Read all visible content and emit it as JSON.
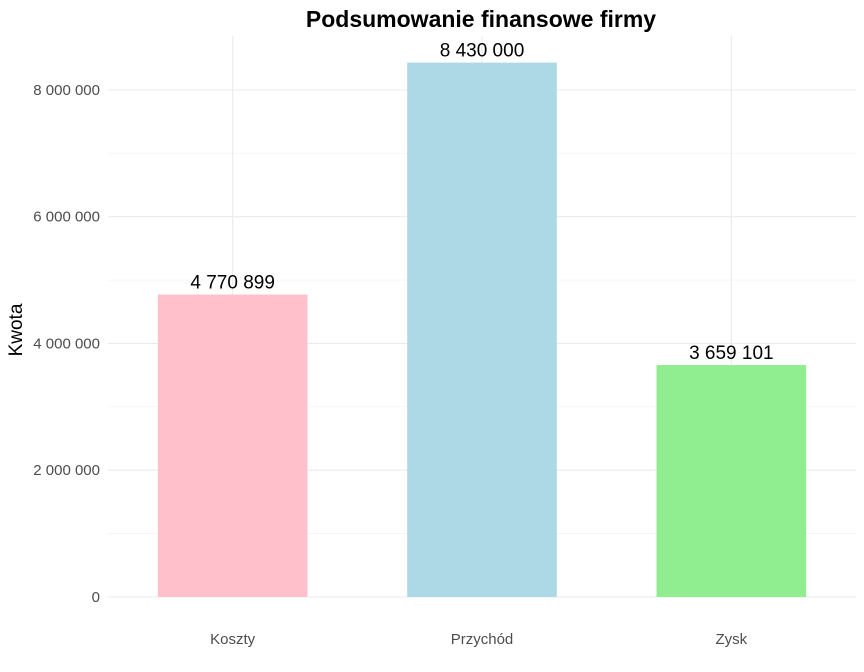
{
  "chart_data": {
    "type": "bar",
    "title": "Podsumowanie finansowe firmy",
    "xlabel": "",
    "ylabel": "Kwota",
    "categories": [
      "Koszty",
      "Przychód",
      "Zysk"
    ],
    "values": [
      4770899,
      8430000,
      3659101
    ],
    "value_labels": [
      "4 770 899",
      "8 430 000",
      "3 659 101"
    ],
    "colors": [
      "#ffc0cb",
      "#add8e6",
      "#90ee90"
    ],
    "ylim": [
      0,
      8850000
    ],
    "y_ticks": [
      0,
      2000000,
      4000000,
      6000000,
      8000000
    ],
    "y_tick_labels": [
      "0",
      "2 000 000",
      "4 000 000",
      "6 000 000",
      "8 000 000"
    ],
    "grid": true,
    "legend": "none"
  }
}
